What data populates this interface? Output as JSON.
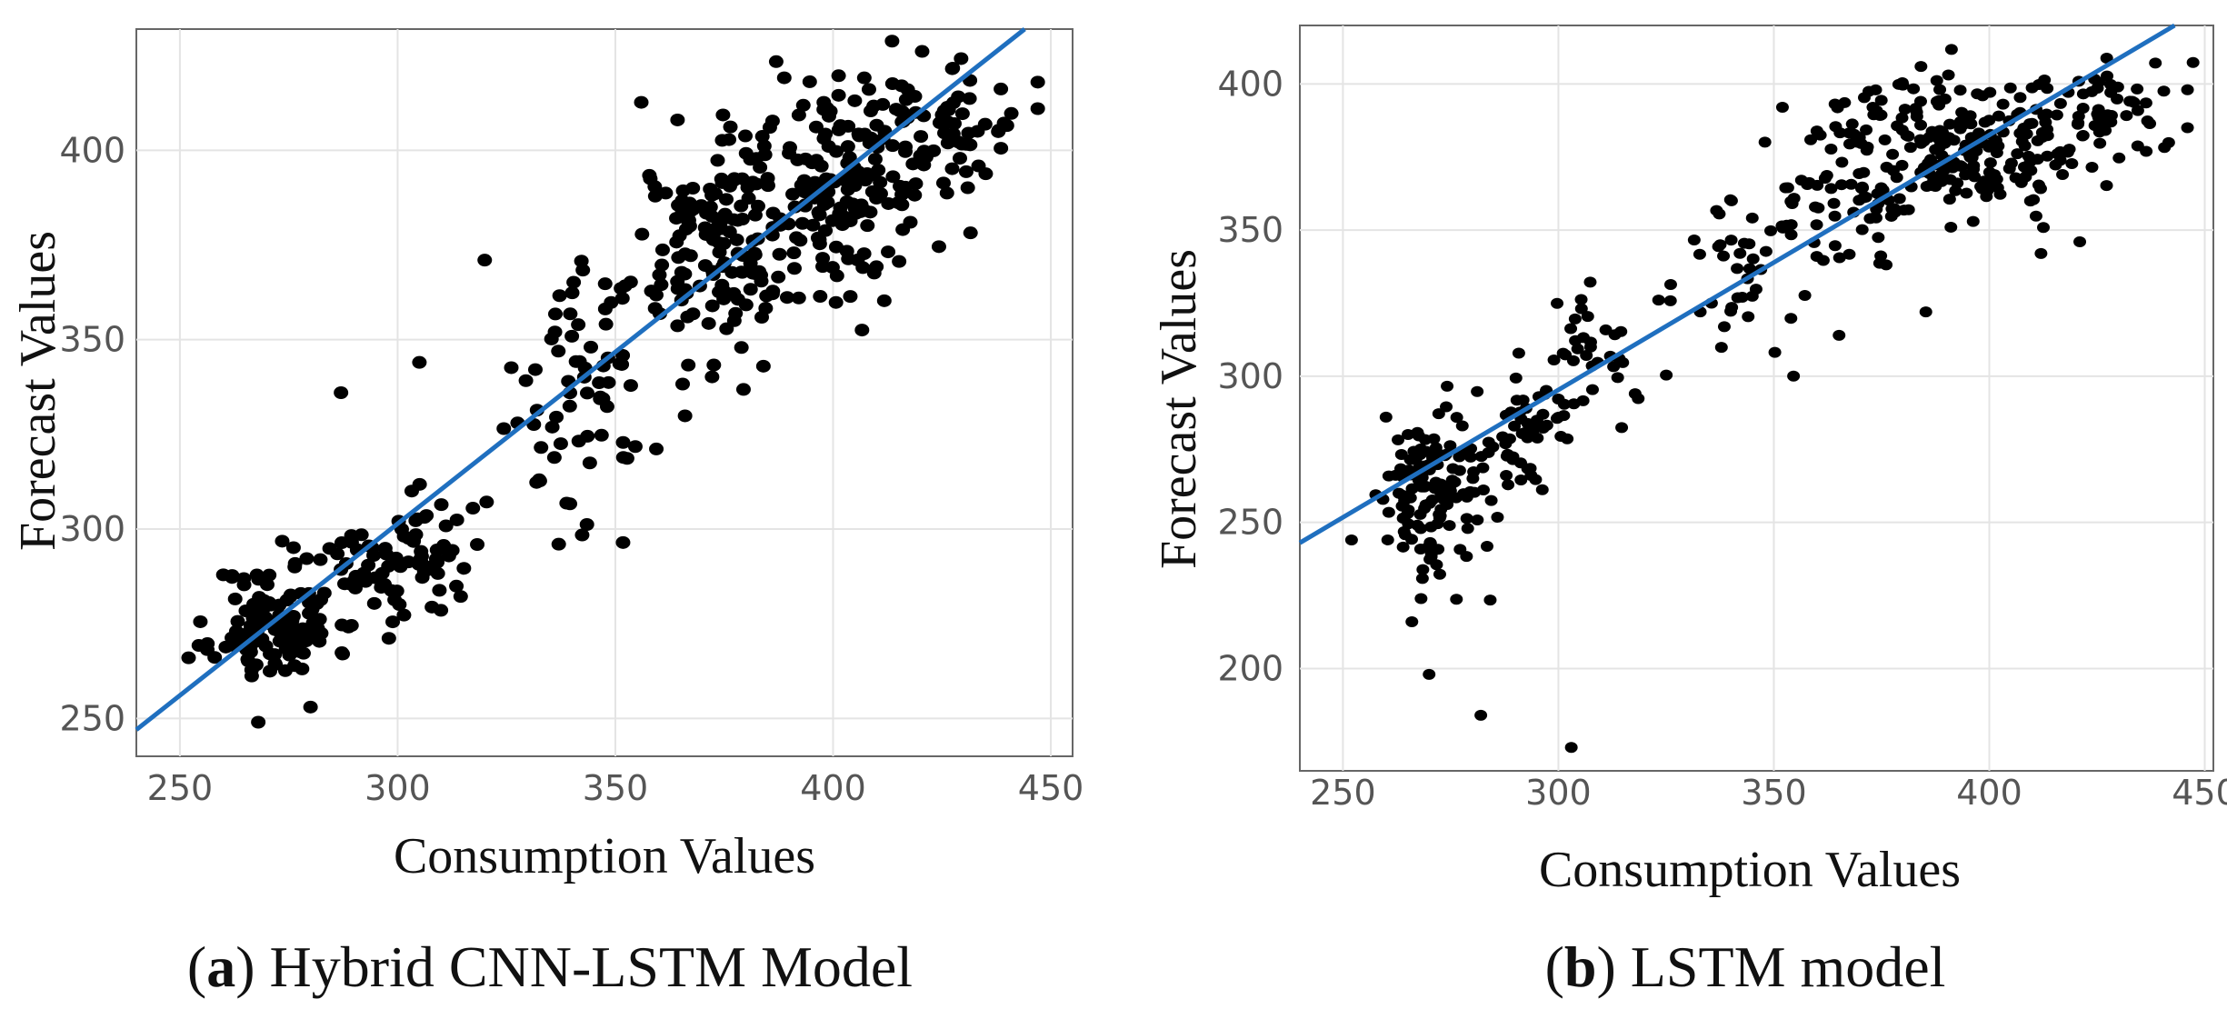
{
  "chart_data": [
    {
      "type": "scatter",
      "caption_letter": "a",
      "caption_text": "Hybrid CNN-LSTM Model",
      "xlabel": "Consumption Values",
      "ylabel": "Forecast Values",
      "xlim": [
        240,
        455
      ],
      "ylim": [
        240,
        432
      ],
      "xticks": [
        250,
        300,
        350,
        400,
        450
      ],
      "yticks": [
        250,
        300,
        350,
        400
      ],
      "grid": true,
      "fit_line": [
        [
          240,
          247
        ],
        [
          444,
          432
        ]
      ],
      "line_color": "#1f6fbf",
      "point_color": "#000000",
      "points_seed": 11,
      "clusters": [
        {
          "cx": 272,
          "cy": 275,
          "sx": 7,
          "sy": 8,
          "n": 120
        },
        {
          "cx": 293,
          "cy": 288,
          "sx": 6,
          "sy": 8,
          "n": 45
        },
        {
          "cx": 308,
          "cy": 297,
          "sx": 6,
          "sy": 8,
          "n": 40
        },
        {
          "cx": 342,
          "cy": 338,
          "sx": 8,
          "sy": 18,
          "n": 70
        },
        {
          "cx": 372,
          "cy": 372,
          "sx": 9,
          "sy": 14,
          "n": 120
        },
        {
          "cx": 398,
          "cy": 392,
          "sx": 12,
          "sy": 14,
          "n": 200
        },
        {
          "cx": 425,
          "cy": 408,
          "sx": 8,
          "sy": 8,
          "n": 60
        }
      ],
      "outliers": [
        [
          252,
          266
        ],
        [
          268,
          249
        ],
        [
          280,
          253
        ],
        [
          287,
          336
        ],
        [
          305,
          344
        ],
        [
          320,
          371
        ],
        [
          337,
          296
        ],
        [
          384,
          343
        ],
        [
          447,
          411
        ],
        [
          447,
          418
        ]
      ]
    },
    {
      "type": "scatter",
      "caption_letter": "b",
      "caption_text": "LSTM model",
      "xlabel": "Consumption Values",
      "ylabel": "Forecast Values",
      "xlim": [
        240,
        452
      ],
      "ylim": [
        165,
        420
      ],
      "xticks": [
        250,
        300,
        350,
        400,
        450
      ],
      "yticks": [
        200,
        250,
        300,
        350,
        400
      ],
      "grid": true,
      "fit_line": [
        [
          240,
          243
        ],
        [
          443,
          420
        ]
      ],
      "line_color": "#1f6fbf",
      "point_color": "#000000",
      "points_seed": 29,
      "clusters": [
        {
          "cx": 270,
          "cy": 260,
          "sx": 6,
          "sy": 14,
          "n": 130
        },
        {
          "cx": 290,
          "cy": 283,
          "sx": 6,
          "sy": 10,
          "n": 50
        },
        {
          "cx": 308,
          "cy": 308,
          "sx": 6,
          "sy": 12,
          "n": 35
        },
        {
          "cx": 342,
          "cy": 335,
          "sx": 7,
          "sy": 14,
          "n": 45
        },
        {
          "cx": 372,
          "cy": 368,
          "sx": 10,
          "sy": 18,
          "n": 110
        },
        {
          "cx": 400,
          "cy": 380,
          "sx": 12,
          "sy": 13,
          "n": 170
        },
        {
          "cx": 428,
          "cy": 388,
          "sx": 8,
          "sy": 9,
          "n": 45
        }
      ],
      "outliers": [
        [
          252,
          244
        ],
        [
          260,
          286
        ],
        [
          266,
          216
        ],
        [
          270,
          198
        ],
        [
          282,
          184
        ],
        [
          303,
          173
        ],
        [
          352,
          392
        ],
        [
          412,
          342
        ],
        [
          421,
          346
        ],
        [
          446,
          385
        ],
        [
          446,
          398
        ]
      ]
    }
  ]
}
